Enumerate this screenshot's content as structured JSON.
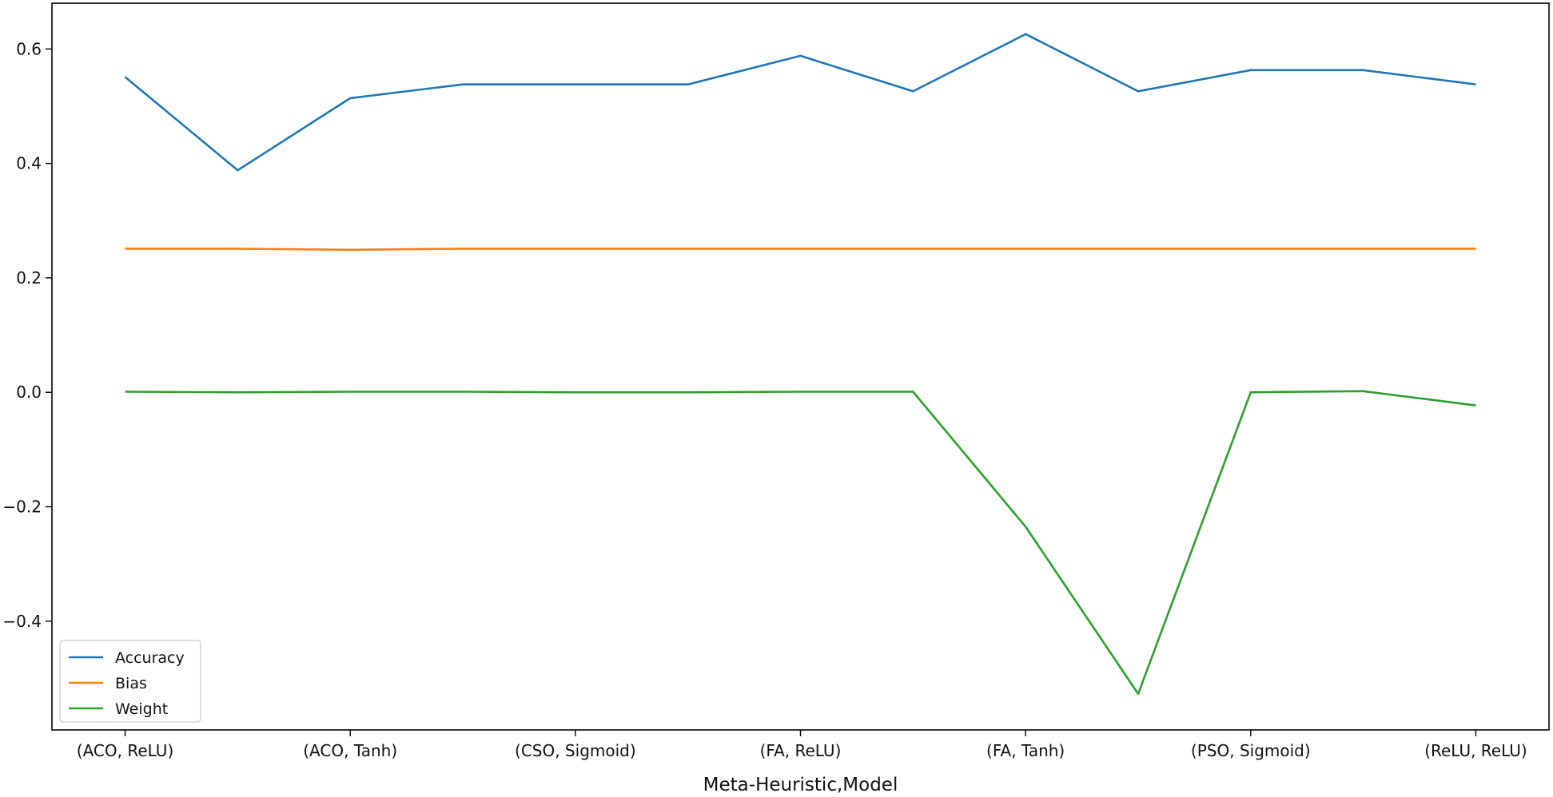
{
  "chart_data": {
    "type": "line",
    "title": "",
    "xlabel": "Meta-Heuristic,Model",
    "ylabel": "",
    "x": [
      0,
      1,
      2,
      3,
      4,
      5,
      6,
      7,
      8,
      9,
      10,
      11,
      12
    ],
    "xtick_positions": [
      0,
      2,
      4,
      6,
      8,
      10,
      12
    ],
    "xtick_labels": [
      "(ACO, ReLU)",
      "(ACO, Tanh)",
      "(CSO, Sigmoid)",
      "(FA, ReLU)",
      "(FA, Tanh)",
      "(PSO, Sigmoid)",
      "(ReLU, ReLU)"
    ],
    "xlim": [
      -0.65,
      12.65
    ],
    "ylim": [
      -0.59,
      0.68
    ],
    "yticks": [
      -0.4,
      -0.2,
      0.0,
      0.2,
      0.4,
      0.6
    ],
    "ytick_labels": [
      "−0.4",
      "−0.2",
      "0.0",
      "0.2",
      "0.4",
      "0.6"
    ],
    "grid": false,
    "legend_position": "lower-left",
    "series": [
      {
        "name": "Accuracy",
        "color": "#1f77b4",
        "values": [
          0.551,
          0.388,
          0.514,
          0.538,
          0.538,
          0.538,
          0.588,
          0.526,
          0.626,
          0.526,
          0.563,
          0.563,
          0.538
        ]
      },
      {
        "name": "Bias",
        "color": "#ff7f0e",
        "values": [
          0.251,
          0.251,
          0.249,
          0.251,
          0.251,
          0.251,
          0.251,
          0.251,
          0.251,
          0.251,
          0.251,
          0.251,
          0.251
        ]
      },
      {
        "name": "Weight",
        "color": "#2ca02c",
        "values": [
          0.001,
          0.0,
          0.001,
          0.001,
          0.0,
          0.0,
          0.001,
          0.001,
          -0.235,
          -0.527,
          0.0,
          0.002,
          -0.023
        ]
      }
    ]
  }
}
